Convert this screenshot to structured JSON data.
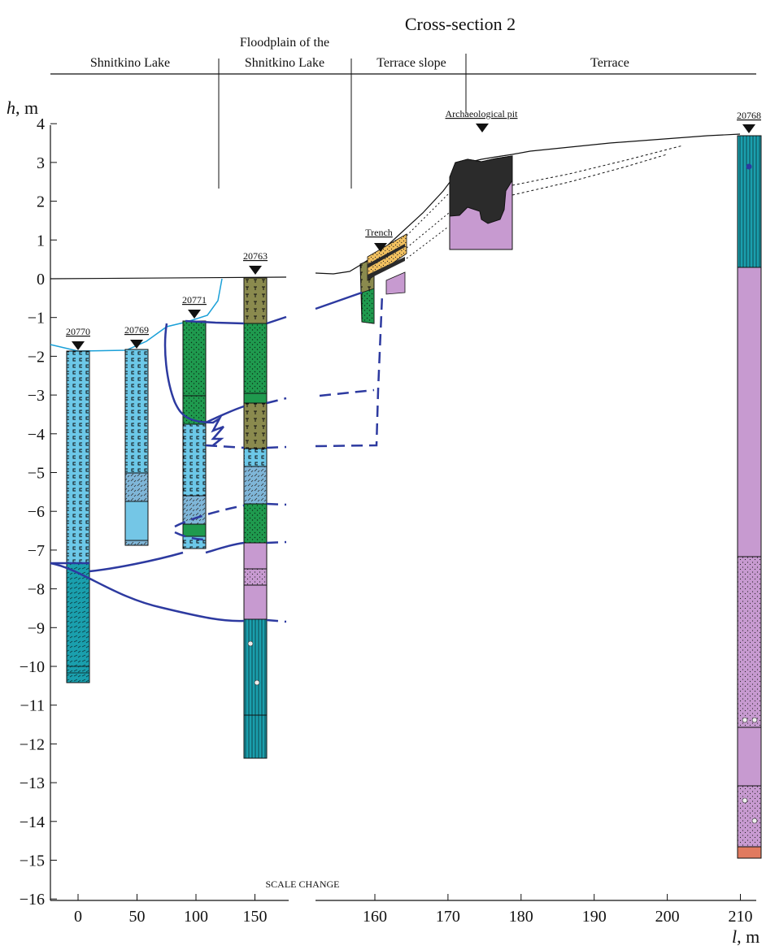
{
  "title": "Cross-section 2",
  "zones": [
    "Shnitkino Lake",
    "Floodplain of the\nShnitkino Lake",
    "Terrace slope",
    "Terrace"
  ],
  "y_axis": {
    "label_var": "h",
    "label_unit": ", m",
    "ticks": [
      4,
      3,
      2,
      1,
      0,
      -1,
      -2,
      -3,
      -4,
      -5,
      -6,
      -7,
      -8,
      -9,
      -10,
      -11,
      -12,
      -13,
      -14,
      -15,
      -16
    ]
  },
  "x_axis_left": {
    "ticks": [
      0,
      50,
      100,
      150
    ]
  },
  "x_axis_right": {
    "ticks": [
      160,
      170,
      180,
      190,
      200,
      210
    ]
  },
  "x_axis_label_var": "l",
  "x_axis_label_unit": ", m",
  "scale_change_label": "SCALE CHANGE",
  "boreholes": [
    {
      "id": "20770",
      "label": "20770"
    },
    {
      "id": "20769",
      "label": "20769"
    },
    {
      "id": "20771",
      "label": "20771"
    },
    {
      "id": "20763",
      "label": "20763"
    },
    {
      "id": "20768",
      "label": "20768"
    }
  ],
  "site_labels": {
    "trench": "Trench",
    "pit": "Archaeological pit"
  },
  "colors": {
    "light_blue": "#6cc8e8",
    "teal": "#1a9fad",
    "green": "#1f9a4e",
    "olive": "#8a8a4e",
    "pink": "#c79ad0",
    "orange_sand": "#f1c060",
    "dark_fill": "#2b2b2b",
    "horizon_line": "#2d3aa0",
    "water_line": "#1aa0d8",
    "red_base": "#e07a5f"
  }
}
